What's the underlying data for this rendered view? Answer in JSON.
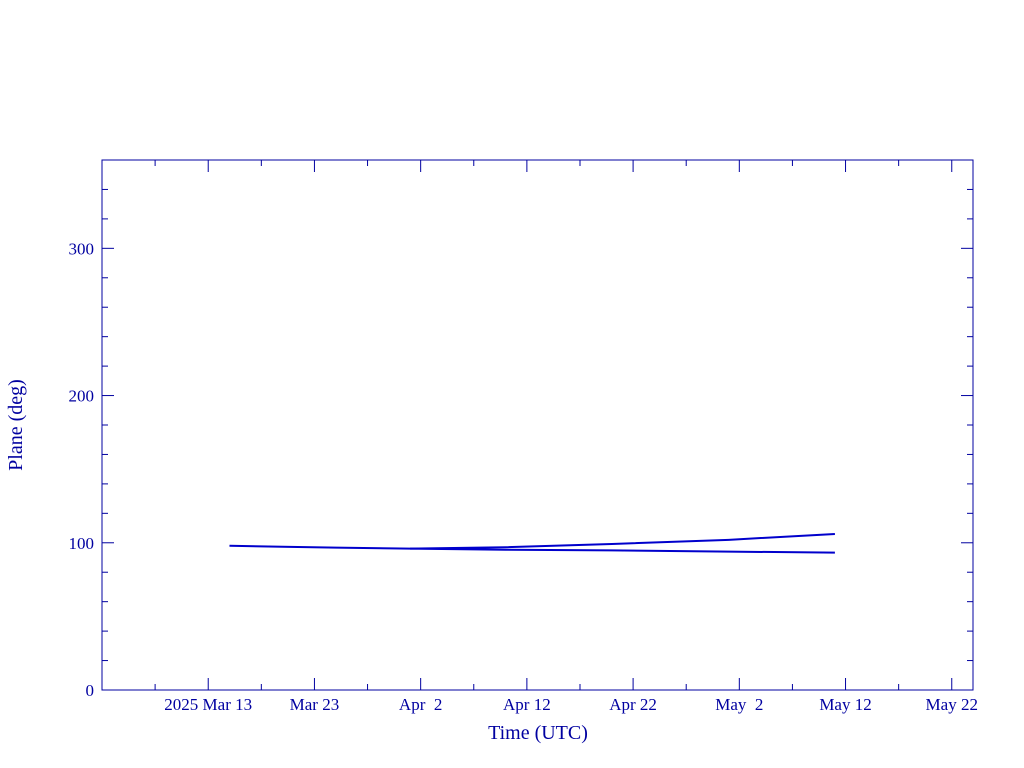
{
  "chart_data": {
    "type": "line",
    "xlabel": "Time (UTC)",
    "ylabel": "Plane (deg)",
    "xlim": [
      "2025-03-03",
      "2025-05-24"
    ],
    "xticks": [
      {
        "value": "2025-03-13",
        "label": "2025 Mar 13"
      },
      {
        "value": "2025-03-23",
        "label": "Mar 23"
      },
      {
        "value": "2025-04-02",
        "label": "Apr  2"
      },
      {
        "value": "2025-04-12",
        "label": "Apr 12"
      },
      {
        "value": "2025-04-22",
        "label": "Apr 22"
      },
      {
        "value": "2025-05-02",
        "label": "May  2"
      },
      {
        "value": "2025-05-12",
        "label": "May 12"
      },
      {
        "value": "2025-05-22",
        "label": "May 22"
      }
    ],
    "xminorticks": [
      "2025-03-08",
      "2025-03-18",
      "2025-03-28",
      "2025-04-07",
      "2025-04-17",
      "2025-04-27",
      "2025-05-07",
      "2025-05-17"
    ],
    "ylim": [
      0,
      360
    ],
    "yticks": [
      0,
      100,
      200,
      300
    ],
    "yminorticks": [
      20,
      40,
      60,
      80,
      120,
      140,
      160,
      180,
      220,
      240,
      260,
      280,
      320,
      340
    ],
    "series": [
      {
        "color": "#0000cc",
        "x": [
          "2025-03-15",
          "2025-03-20",
          "2025-03-25",
          "2025-04-01",
          "2025-04-10",
          "2025-04-20",
          "2025-05-01",
          "2025-05-11"
        ],
        "values": [
          98,
          97.3,
          96.7,
          96,
          95.3,
          94.8,
          94,
          93.3
        ]
      },
      {
        "color": "#0000cc",
        "x": [
          "2025-04-01",
          "2025-04-10",
          "2025-04-20",
          "2025-05-01",
          "2025-05-11"
        ],
        "values": [
          96,
          97,
          99.2,
          102,
          106
        ]
      }
    ]
  }
}
